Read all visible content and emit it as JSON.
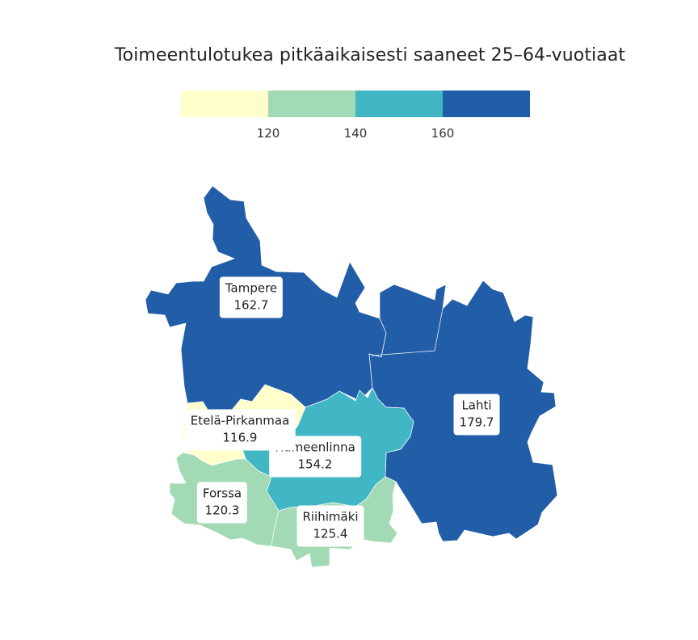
{
  "title": "Toimeentulotukea pitkäaikaisesti saaneet 25–64-vuotiaat",
  "legend": {
    "colors": [
      "#ffffcc",
      "#a1dab4",
      "#41b6c4",
      "#225ea8"
    ],
    "ticks": [
      "120",
      "140",
      "160"
    ]
  },
  "regions": {
    "tampere": {
      "name": "Tampere",
      "value": "162.7",
      "color": "#225ea8"
    },
    "lahti": {
      "name": "Lahti",
      "value": "179.7",
      "color": "#225ea8"
    },
    "hameen": {
      "name": "Hämeenlinna",
      "value": "154.2",
      "color": "#41b6c4"
    },
    "etela": {
      "name": "Etelä-Pirkanmaa",
      "value": "116.9",
      "color": "#ffffcc"
    },
    "forssa": {
      "name": "Forssa",
      "value": "120.3",
      "color": "#a1dab4"
    },
    "riihimaki": {
      "name": "Riihimäki",
      "value": "125.4",
      "color": "#a1dab4"
    }
  }
}
